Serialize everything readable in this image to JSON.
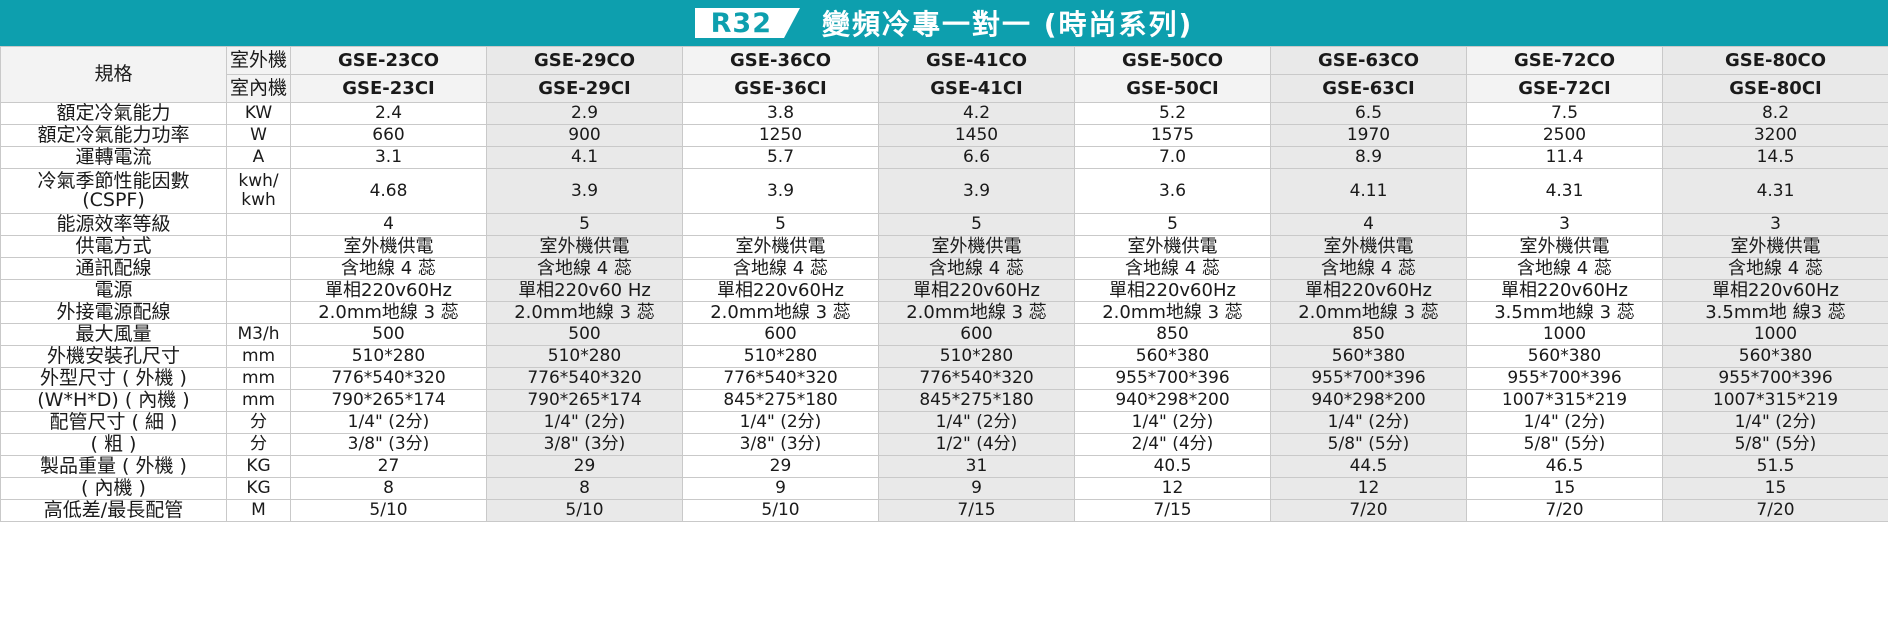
{
  "banner": {
    "badge": "R32",
    "title": "變頻冷專一對一 (時尚系列)"
  },
  "header": {
    "spec_label": "規格",
    "outdoor_label": "室外機",
    "indoor_label": "室內機",
    "outdoor_models": [
      "GSE-23CO",
      "GSE-29CO",
      "GSE-36CO",
      "GSE-41CO",
      "GSE-50CO",
      "GSE-63CO",
      "GSE-72CO",
      "GSE-80CO"
    ],
    "indoor_models": [
      "GSE-23CI",
      "GSE-29CI",
      "GSE-36CI",
      "GSE-41CI",
      "GSE-50CI",
      "GSE-63CI",
      "GSE-72CI",
      "GSE-80CI"
    ]
  },
  "rows": [
    {
      "label": "額定冷氣能力",
      "unit": "KW",
      "values": [
        "2.4",
        "2.9",
        "3.8",
        "4.2",
        "5.2",
        "6.5",
        "7.5",
        "8.2"
      ]
    },
    {
      "label": "額定冷氣能力功率",
      "unit": "W",
      "values": [
        "660",
        "900",
        "1250",
        "1450",
        "1575",
        "1970",
        "2500",
        "3200"
      ]
    },
    {
      "label": "運轉電流",
      "unit": "A",
      "values": [
        "3.1",
        "4.1",
        "5.7",
        "6.6",
        "7.0",
        "8.9",
        "11.4",
        "14.5"
      ]
    },
    {
      "label": "冷氣季節性能因數",
      "label2": "(CSPF)",
      "unit": "kwh/",
      "unit2": "kwh",
      "values": [
        "4.68",
        "3.9",
        "3.9",
        "3.9",
        "3.6",
        "4.11",
        "4.31",
        "4.31"
      ]
    },
    {
      "label": "能源效率等級",
      "unit": "",
      "values": [
        "4",
        "5",
        "5",
        "5",
        "5",
        "4",
        "3",
        "3"
      ]
    },
    {
      "label": "供電方式",
      "unit": "",
      "values": [
        "室外機供電",
        "室外機供電",
        "室外機供電",
        "室外機供電",
        "室外機供電",
        "室外機供電",
        "室外機供電",
        "室外機供電"
      ]
    },
    {
      "label": "通訊配線",
      "unit": "",
      "values": [
        "含地線 4 蕊",
        "含地線 4 蕊",
        "含地線 4 蕊",
        "含地線 4 蕊",
        "含地線 4 蕊",
        "含地線 4 蕊",
        "含地線 4 蕊",
        "含地線 4 蕊"
      ]
    },
    {
      "label": "電源",
      "unit": "",
      "values": [
        "單相220v60Hz",
        "單相220v60 Hz",
        "單相220v60Hz",
        "單相220v60Hz",
        "單相220v60Hz",
        "單相220v60Hz",
        "單相220v60Hz",
        "單相220v60Hz"
      ]
    },
    {
      "label": "外接電源配線",
      "unit": "",
      "values": [
        "2.0mm地線 3 蕊",
        "2.0mm地線 3 蕊",
        "2.0mm地線 3 蕊",
        "2.0mm地線 3 蕊",
        "2.0mm地線 3 蕊",
        "2.0mm地線 3 蕊",
        "3.5mm地線 3 蕊",
        "3.5mm地 線3 蕊"
      ]
    },
    {
      "label": "最大風量",
      "unit": "M3/h",
      "values": [
        "500",
        "500",
        "600",
        "600",
        "850",
        "850",
        "1000",
        "1000"
      ]
    },
    {
      "label": "外機安裝孔尺寸",
      "unit": "mm",
      "values": [
        "510*280",
        "510*280",
        "510*280",
        "510*280",
        "560*380",
        "560*380",
        "560*380",
        "560*380"
      ]
    },
    {
      "label": "外型尺寸 ( 外機 )",
      "unit": "mm",
      "values": [
        "776*540*320",
        "776*540*320",
        "776*540*320",
        "776*540*320",
        "955*700*396",
        "955*700*396",
        "955*700*396",
        "955*700*396"
      ]
    },
    {
      "label": "(W*H*D) ( 內機 )",
      "unit": "mm",
      "values": [
        "790*265*174",
        "790*265*174",
        "845*275*180",
        "845*275*180",
        "940*298*200",
        "940*298*200",
        "1007*315*219",
        "1007*315*219"
      ]
    },
    {
      "label": "配管尺寸 ( 細 )",
      "unit": "分",
      "values": [
        "1/4\" (2分)",
        "1/4\" (2分)",
        "1/4\" (2分)",
        "1/4\" (2分)",
        "1/4\" (2分)",
        "1/4\" (2分)",
        "1/4\" (2分)",
        "1/4\" (2分)"
      ]
    },
    {
      "label": "( 粗 )",
      "unit": "分",
      "values": [
        "3/8\" (3分)",
        "3/8\" (3分)",
        "3/8\" (3分)",
        "1/2\" (4分)",
        "2/4\" (4分)",
        "5/8\" (5分)",
        "5/8\" (5分)",
        "5/8\" (5分)"
      ]
    },
    {
      "label": "製品重量 ( 外機 )",
      "unit": "KG",
      "values": [
        "27",
        "29",
        "29",
        "31",
        "40.5",
        "44.5",
        "46.5",
        "51.5"
      ]
    },
    {
      "label": "( 內機 )",
      "unit": "KG",
      "values": [
        "8",
        "8",
        "9",
        "9",
        "12",
        "12",
        "15",
        "15"
      ]
    },
    {
      "label": "高低差/最長配管",
      "unit": "M",
      "values": [
        "5/10",
        "5/10",
        "5/10",
        "7/15",
        "7/15",
        "7/20",
        "7/20",
        "7/20"
      ]
    }
  ]
}
